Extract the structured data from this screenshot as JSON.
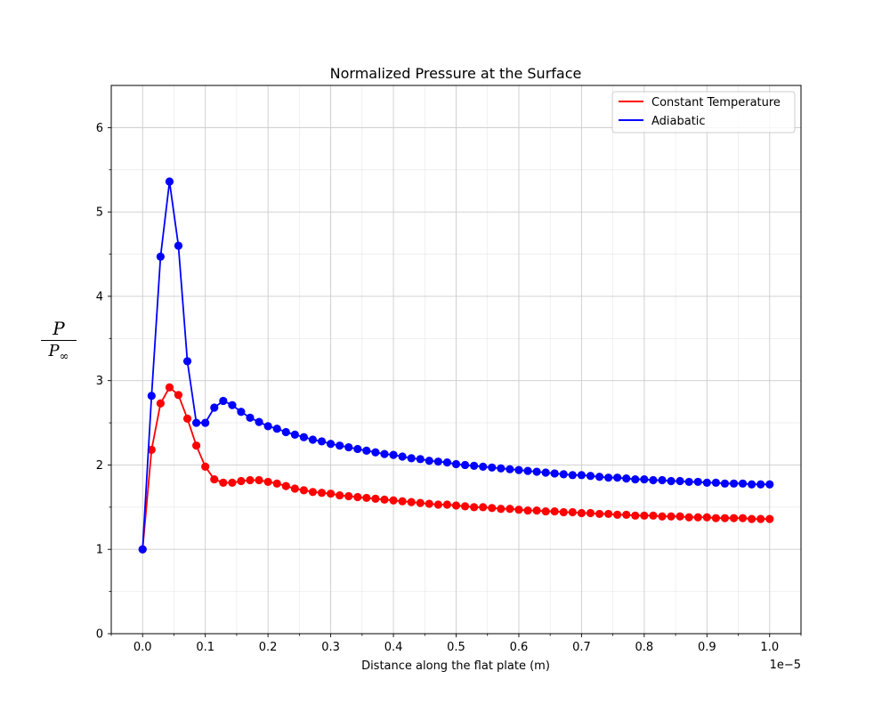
{
  "chart_data": {
    "type": "line",
    "title": "Normalized Pressure at the Surface",
    "xlabel": "Distance along the flat plate (m)",
    "ylabel": {
      "numerator": "P",
      "denominator": "P",
      "subscript": "∞"
    },
    "x_offset_label": "1e−5",
    "xlim": [
      -0.05,
      1.05
    ],
    "ylim": [
      0,
      6.5
    ],
    "x_ticks": [
      "0.0",
      "0.1",
      "0.2",
      "0.3",
      "0.4",
      "0.5",
      "0.6",
      "0.7",
      "0.8",
      "0.9",
      "1.0"
    ],
    "y_ticks": [
      "0",
      "1",
      "2",
      "3",
      "4",
      "5",
      "6"
    ],
    "grid": true,
    "legend_position": "top-right",
    "x": [
      0,
      0.0143,
      0.0286,
      0.0429,
      0.0571,
      0.0714,
      0.0857,
      0.1,
      0.1143,
      0.1286,
      0.1429,
      0.1571,
      0.1714,
      0.1857,
      0.2,
      0.2143,
      0.2286,
      0.2429,
      0.2571,
      0.2714,
      0.2857,
      0.3,
      0.3143,
      0.3286,
      0.3429,
      0.3571,
      0.3714,
      0.3857,
      0.4,
      0.4143,
      0.4286,
      0.4429,
      0.4571,
      0.4714,
      0.4857,
      0.5,
      0.5143,
      0.5286,
      0.5429,
      0.5571,
      0.5714,
      0.5857,
      0.6,
      0.6143,
      0.6286,
      0.6429,
      0.6571,
      0.6714,
      0.6857,
      0.7,
      0.7143,
      0.7286,
      0.7429,
      0.7571,
      0.7714,
      0.7857,
      0.8,
      0.8143,
      0.8286,
      0.8429,
      0.8571,
      0.8714,
      0.8857,
      0.9,
      0.9143,
      0.9286,
      0.9429,
      0.9571,
      0.9714,
      0.9857,
      1.0
    ],
    "series": [
      {
        "name": "Constant Temperature",
        "color": "#ff0000",
        "values": [
          1.0,
          2.18,
          2.73,
          2.92,
          2.83,
          2.55,
          2.23,
          1.98,
          1.83,
          1.79,
          1.79,
          1.81,
          1.82,
          1.82,
          1.8,
          1.78,
          1.75,
          1.72,
          1.7,
          1.68,
          1.67,
          1.66,
          1.64,
          1.63,
          1.62,
          1.61,
          1.6,
          1.59,
          1.58,
          1.57,
          1.56,
          1.55,
          1.54,
          1.53,
          1.53,
          1.52,
          1.51,
          1.5,
          1.5,
          1.49,
          1.48,
          1.48,
          1.47,
          1.46,
          1.46,
          1.45,
          1.45,
          1.44,
          1.44,
          1.43,
          1.43,
          1.42,
          1.42,
          1.41,
          1.41,
          1.4,
          1.4,
          1.4,
          1.39,
          1.39,
          1.39,
          1.38,
          1.38,
          1.38,
          1.37,
          1.37,
          1.37,
          1.37,
          1.36,
          1.36,
          1.36
        ]
      },
      {
        "name": "Adiabatic",
        "color": "#0000ff",
        "values": [
          1.0,
          2.82,
          4.47,
          5.36,
          4.6,
          3.23,
          2.5,
          2.5,
          2.68,
          2.76,
          2.71,
          2.63,
          2.56,
          2.51,
          2.46,
          2.43,
          2.39,
          2.36,
          2.33,
          2.3,
          2.28,
          2.25,
          2.23,
          2.21,
          2.19,
          2.17,
          2.15,
          2.13,
          2.12,
          2.1,
          2.08,
          2.07,
          2.05,
          2.04,
          2.03,
          2.01,
          2.0,
          1.99,
          1.98,
          1.97,
          1.96,
          1.95,
          1.94,
          1.93,
          1.92,
          1.91,
          1.9,
          1.89,
          1.88,
          1.88,
          1.87,
          1.86,
          1.85,
          1.85,
          1.84,
          1.83,
          1.83,
          1.82,
          1.82,
          1.81,
          1.81,
          1.8,
          1.8,
          1.79,
          1.79,
          1.78,
          1.78,
          1.78,
          1.77,
          1.77,
          1.77
        ]
      }
    ]
  }
}
